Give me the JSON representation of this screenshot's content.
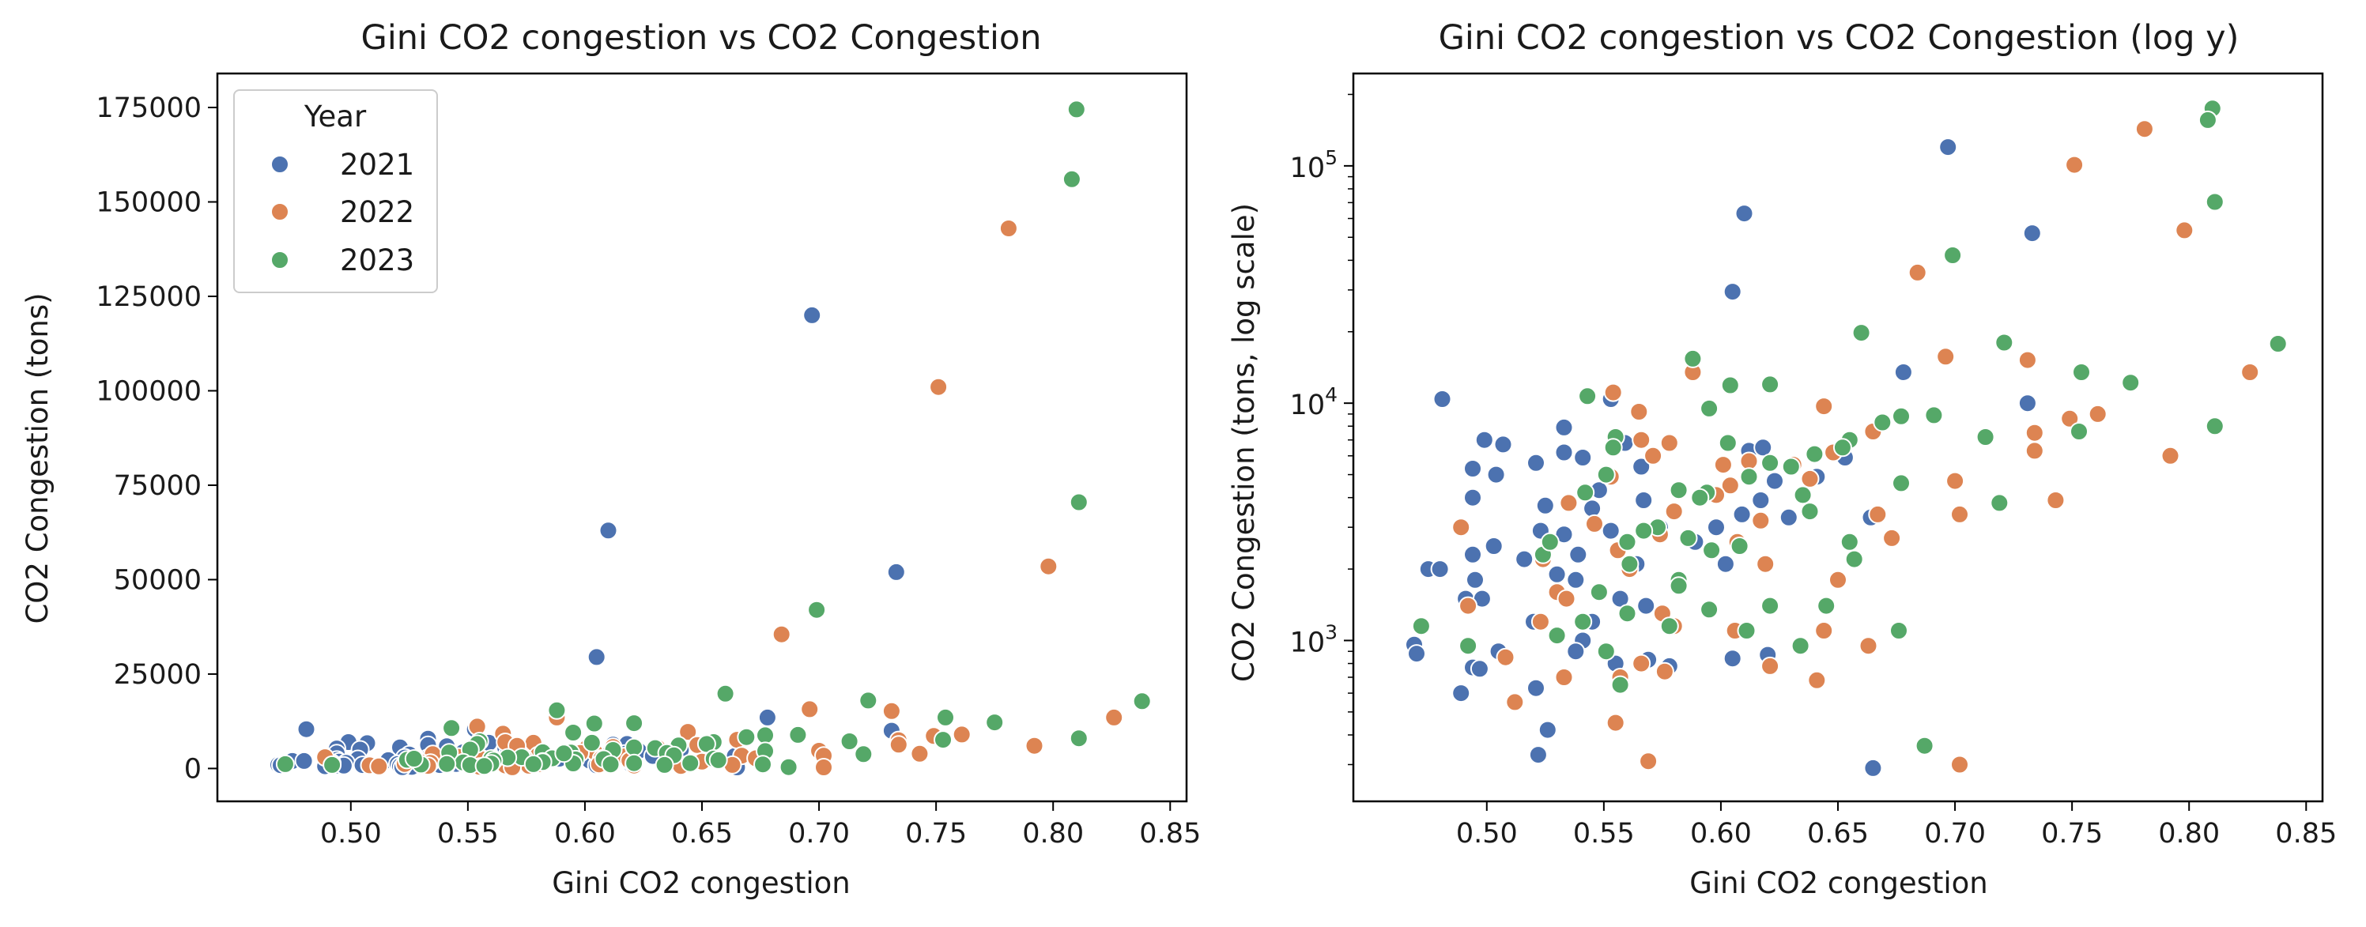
{
  "figure": {
    "legend": {
      "title": "Year",
      "labels": [
        "2021",
        "2022",
        "2023"
      ]
    },
    "colors": {
      "2021": "#4c72b0",
      "2022": "#dd8452",
      "2023": "#55a868"
    }
  },
  "chart_data": [
    {
      "type": "scatter",
      "title": "Gini CO2 congestion vs CO2 Congestion",
      "xlabel": "Gini CO2 congestion",
      "ylabel": "CO2 Congestion (tons)",
      "xlim": [
        0.443,
        0.857
      ],
      "ylim": [
        -8700,
        184000
      ],
      "xscale": "linear",
      "yscale": "linear",
      "x_ticks": [
        "0.50",
        "0.55",
        "0.60",
        "0.65",
        "0.70",
        "0.75",
        "0.80",
        "0.85"
      ],
      "y_ticks": [
        "0",
        "25000",
        "50000",
        "75000",
        "100000",
        "125000",
        "150000",
        "175000"
      ],
      "grid": false,
      "legend_position": "upper-left"
    },
    {
      "type": "scatter",
      "title": "Gini CO2 congestion vs CO2 Congestion (log y)",
      "xlabel": "Gini CO2 congestion",
      "ylabel": "CO2 Congestion (tons, log scale)",
      "xlim": [
        0.443,
        0.857
      ],
      "ylim": [
        210,
        245000
      ],
      "xscale": "linear",
      "yscale": "log",
      "x_ticks": [
        "0.50",
        "0.55",
        "0.60",
        "0.65",
        "0.70",
        "0.75",
        "0.80",
        "0.85"
      ],
      "y_ticks": [
        "10^3",
        "10^4",
        "10^5"
      ],
      "grid": false,
      "legend_position": "none"
    }
  ],
  "points": [
    {
      "x": 0.697,
      "y": 120000,
      "s": "2021"
    },
    {
      "x": 0.61,
      "y": 63000,
      "s": "2021"
    },
    {
      "x": 0.733,
      "y": 52000,
      "s": "2021"
    },
    {
      "x": 0.605,
      "y": 29500,
      "s": "2021"
    },
    {
      "x": 0.678,
      "y": 13500,
      "s": "2021"
    },
    {
      "x": 0.481,
      "y": 10400,
      "s": "2021"
    },
    {
      "x": 0.553,
      "y": 10400,
      "s": "2021"
    },
    {
      "x": 0.731,
      "y": 10000,
      "s": "2021"
    },
    {
      "x": 0.533,
      "y": 7900,
      "s": "2021"
    },
    {
      "x": 0.499,
      "y": 7000,
      "s": "2021"
    },
    {
      "x": 0.507,
      "y": 6700,
      "s": "2021"
    },
    {
      "x": 0.559,
      "y": 6800,
      "s": "2021"
    },
    {
      "x": 0.612,
      "y": 6300,
      "s": "2021"
    },
    {
      "x": 0.618,
      "y": 6500,
      "s": "2021"
    },
    {
      "x": 0.533,
      "y": 6200,
      "s": "2021"
    },
    {
      "x": 0.653,
      "y": 5900,
      "s": "2021"
    },
    {
      "x": 0.541,
      "y": 5900,
      "s": "2021"
    },
    {
      "x": 0.521,
      "y": 5600,
      "s": "2021"
    },
    {
      "x": 0.494,
      "y": 5300,
      "s": "2021"
    },
    {
      "x": 0.504,
      "y": 5000,
      "s": "2021"
    },
    {
      "x": 0.566,
      "y": 5400,
      "s": "2021"
    },
    {
      "x": 0.623,
      "y": 4700,
      "s": "2021"
    },
    {
      "x": 0.494,
      "y": 4000,
      "s": "2021"
    },
    {
      "x": 0.567,
      "y": 3900,
      "s": "2021"
    },
    {
      "x": 0.545,
      "y": 3600,
      "s": "2021"
    },
    {
      "x": 0.525,
      "y": 3700,
      "s": "2021"
    },
    {
      "x": 0.609,
      "y": 3400,
      "s": "2021"
    },
    {
      "x": 0.617,
      "y": 3900,
      "s": "2021"
    },
    {
      "x": 0.598,
      "y": 3000,
      "s": "2021"
    },
    {
      "x": 0.629,
      "y": 3300,
      "s": "2021"
    },
    {
      "x": 0.664,
      "y": 3300,
      "s": "2021"
    },
    {
      "x": 0.523,
      "y": 2900,
      "s": "2021"
    },
    {
      "x": 0.553,
      "y": 2900,
      "s": "2021"
    },
    {
      "x": 0.533,
      "y": 2800,
      "s": "2021"
    },
    {
      "x": 0.503,
      "y": 2500,
      "s": "2021"
    },
    {
      "x": 0.494,
      "y": 2300,
      "s": "2021"
    },
    {
      "x": 0.516,
      "y": 2200,
      "s": "2021"
    },
    {
      "x": 0.539,
      "y": 2300,
      "s": "2021"
    },
    {
      "x": 0.564,
      "y": 2100,
      "s": "2021"
    },
    {
      "x": 0.602,
      "y": 2100,
      "s": "2021"
    },
    {
      "x": 0.475,
      "y": 2000,
      "s": "2021"
    },
    {
      "x": 0.48,
      "y": 2000,
      "s": "2021"
    },
    {
      "x": 0.53,
      "y": 1900,
      "s": "2021"
    },
    {
      "x": 0.495,
      "y": 1800,
      "s": "2021"
    },
    {
      "x": 0.538,
      "y": 1800,
      "s": "2021"
    },
    {
      "x": 0.491,
      "y": 1500,
      "s": "2021"
    },
    {
      "x": 0.498,
      "y": 1500,
      "s": "2021"
    },
    {
      "x": 0.557,
      "y": 1500,
      "s": "2021"
    },
    {
      "x": 0.568,
      "y": 1400,
      "s": "2021"
    },
    {
      "x": 0.52,
      "y": 1200,
      "s": "2021"
    },
    {
      "x": 0.545,
      "y": 1200,
      "s": "2021"
    },
    {
      "x": 0.541,
      "y": 1000,
      "s": "2021"
    },
    {
      "x": 0.505,
      "y": 900,
      "s": "2021"
    },
    {
      "x": 0.469,
      "y": 960,
      "s": "2021"
    },
    {
      "x": 0.47,
      "y": 880,
      "s": "2021"
    },
    {
      "x": 0.538,
      "y": 900,
      "s": "2021"
    },
    {
      "x": 0.62,
      "y": 870,
      "s": "2021"
    },
    {
      "x": 0.605,
      "y": 840,
      "s": "2021"
    },
    {
      "x": 0.569,
      "y": 830,
      "s": "2021"
    },
    {
      "x": 0.578,
      "y": 780,
      "s": "2021"
    },
    {
      "x": 0.494,
      "y": 770,
      "s": "2021"
    },
    {
      "x": 0.497,
      "y": 760,
      "s": "2021"
    },
    {
      "x": 0.555,
      "y": 800,
      "s": "2021"
    },
    {
      "x": 0.521,
      "y": 630,
      "s": "2021"
    },
    {
      "x": 0.489,
      "y": 600,
      "s": "2021"
    },
    {
      "x": 0.526,
      "y": 420,
      "s": "2021"
    },
    {
      "x": 0.522,
      "y": 330,
      "s": "2021"
    },
    {
      "x": 0.665,
      "y": 290,
      "s": "2021"
    },
    {
      "x": 0.574,
      "y": 3000,
      "s": "2021"
    },
    {
      "x": 0.548,
      "y": 4300,
      "s": "2021"
    },
    {
      "x": 0.589,
      "y": 2600,
      "s": "2021"
    },
    {
      "x": 0.641,
      "y": 4900,
      "s": "2021"
    },
    {
      "x": 0.781,
      "y": 143000,
      "s": "2022"
    },
    {
      "x": 0.751,
      "y": 101000,
      "s": "2022"
    },
    {
      "x": 0.798,
      "y": 53500,
      "s": "2022"
    },
    {
      "x": 0.684,
      "y": 35500,
      "s": "2022"
    },
    {
      "x": 0.696,
      "y": 15700,
      "s": "2022"
    },
    {
      "x": 0.731,
      "y": 15200,
      "s": "2022"
    },
    {
      "x": 0.826,
      "y": 13500,
      "s": "2022"
    },
    {
      "x": 0.588,
      "y": 13500,
      "s": "2022"
    },
    {
      "x": 0.554,
      "y": 11100,
      "s": "2022"
    },
    {
      "x": 0.644,
      "y": 9700,
      "s": "2022"
    },
    {
      "x": 0.565,
      "y": 9200,
      "s": "2022"
    },
    {
      "x": 0.761,
      "y": 9000,
      "s": "2022"
    },
    {
      "x": 0.749,
      "y": 8600,
      "s": "2022"
    },
    {
      "x": 0.665,
      "y": 7600,
      "s": "2022"
    },
    {
      "x": 0.578,
      "y": 6800,
      "s": "2022"
    },
    {
      "x": 0.566,
      "y": 7000,
      "s": "2022"
    },
    {
      "x": 0.734,
      "y": 7500,
      "s": "2022"
    },
    {
      "x": 0.734,
      "y": 6300,
      "s": "2022"
    },
    {
      "x": 0.792,
      "y": 6000,
      "s": "2022"
    },
    {
      "x": 0.601,
      "y": 5500,
      "s": "2022"
    },
    {
      "x": 0.612,
      "y": 5700,
      "s": "2022"
    },
    {
      "x": 0.571,
      "y": 6000,
      "s": "2022"
    },
    {
      "x": 0.631,
      "y": 5500,
      "s": "2022"
    },
    {
      "x": 0.648,
      "y": 6200,
      "s": "2022"
    },
    {
      "x": 0.7,
      "y": 4700,
      "s": "2022"
    },
    {
      "x": 0.553,
      "y": 4900,
      "s": "2022"
    },
    {
      "x": 0.604,
      "y": 4500,
      "s": "2022"
    },
    {
      "x": 0.638,
      "y": 4800,
      "s": "2022"
    },
    {
      "x": 0.743,
      "y": 3900,
      "s": "2022"
    },
    {
      "x": 0.598,
      "y": 4100,
      "s": "2022"
    },
    {
      "x": 0.535,
      "y": 3800,
      "s": "2022"
    },
    {
      "x": 0.58,
      "y": 3500,
      "s": "2022"
    },
    {
      "x": 0.702,
      "y": 3400,
      "s": "2022"
    },
    {
      "x": 0.667,
      "y": 3400,
      "s": "2022"
    },
    {
      "x": 0.617,
      "y": 3200,
      "s": "2022"
    },
    {
      "x": 0.546,
      "y": 3100,
      "s": "2022"
    },
    {
      "x": 0.574,
      "y": 2800,
      "s": "2022"
    },
    {
      "x": 0.607,
      "y": 2600,
      "s": "2022"
    },
    {
      "x": 0.556,
      "y": 2400,
      "s": "2022"
    },
    {
      "x": 0.524,
      "y": 2200,
      "s": "2022"
    },
    {
      "x": 0.619,
      "y": 2100,
      "s": "2022"
    },
    {
      "x": 0.561,
      "y": 2000,
      "s": "2022"
    },
    {
      "x": 0.53,
      "y": 1600,
      "s": "2022"
    },
    {
      "x": 0.492,
      "y": 1400,
      "s": "2022"
    },
    {
      "x": 0.534,
      "y": 1500,
      "s": "2022"
    },
    {
      "x": 0.575,
      "y": 1300,
      "s": "2022"
    },
    {
      "x": 0.523,
      "y": 1200,
      "s": "2022"
    },
    {
      "x": 0.606,
      "y": 1100,
      "s": "2022"
    },
    {
      "x": 0.644,
      "y": 1100,
      "s": "2022"
    },
    {
      "x": 0.58,
      "y": 1150,
      "s": "2022"
    },
    {
      "x": 0.673,
      "y": 2700,
      "s": "2022"
    },
    {
      "x": 0.65,
      "y": 1800,
      "s": "2022"
    },
    {
      "x": 0.508,
      "y": 850,
      "s": "2022"
    },
    {
      "x": 0.566,
      "y": 800,
      "s": "2022"
    },
    {
      "x": 0.621,
      "y": 780,
      "s": "2022"
    },
    {
      "x": 0.557,
      "y": 700,
      "s": "2022"
    },
    {
      "x": 0.576,
      "y": 740,
      "s": "2022"
    },
    {
      "x": 0.533,
      "y": 700,
      "s": "2022"
    },
    {
      "x": 0.641,
      "y": 680,
      "s": "2022"
    },
    {
      "x": 0.512,
      "y": 550,
      "s": "2022"
    },
    {
      "x": 0.555,
      "y": 450,
      "s": "2022"
    },
    {
      "x": 0.569,
      "y": 310,
      "s": "2022"
    },
    {
      "x": 0.702,
      "y": 300,
      "s": "2022"
    },
    {
      "x": 0.663,
      "y": 950,
      "s": "2022"
    },
    {
      "x": 0.489,
      "y": 3000,
      "s": "2022"
    },
    {
      "x": 0.81,
      "y": 174500,
      "s": "2023"
    },
    {
      "x": 0.808,
      "y": 156000,
      "s": "2023"
    },
    {
      "x": 0.811,
      "y": 70500,
      "s": "2023"
    },
    {
      "x": 0.699,
      "y": 42000,
      "s": "2023"
    },
    {
      "x": 0.66,
      "y": 19800,
      "s": "2023"
    },
    {
      "x": 0.721,
      "y": 18000,
      "s": "2023"
    },
    {
      "x": 0.838,
      "y": 17800,
      "s": "2023"
    },
    {
      "x": 0.588,
      "y": 15400,
      "s": "2023"
    },
    {
      "x": 0.754,
      "y": 13500,
      "s": "2023"
    },
    {
      "x": 0.775,
      "y": 12200,
      "s": "2023"
    },
    {
      "x": 0.604,
      "y": 11900,
      "s": "2023"
    },
    {
      "x": 0.621,
      "y": 12000,
      "s": "2023"
    },
    {
      "x": 0.543,
      "y": 10700,
      "s": "2023"
    },
    {
      "x": 0.595,
      "y": 9500,
      "s": "2023"
    },
    {
      "x": 0.691,
      "y": 8900,
      "s": "2023"
    },
    {
      "x": 0.677,
      "y": 8800,
      "s": "2023"
    },
    {
      "x": 0.669,
      "y": 8300,
      "s": "2023"
    },
    {
      "x": 0.811,
      "y": 8000,
      "s": "2023"
    },
    {
      "x": 0.753,
      "y": 7600,
      "s": "2023"
    },
    {
      "x": 0.713,
      "y": 7200,
      "s": "2023"
    },
    {
      "x": 0.555,
      "y": 7200,
      "s": "2023"
    },
    {
      "x": 0.655,
      "y": 7000,
      "s": "2023"
    },
    {
      "x": 0.603,
      "y": 6800,
      "s": "2023"
    },
    {
      "x": 0.652,
      "y": 6500,
      "s": "2023"
    },
    {
      "x": 0.64,
      "y": 6100,
      "s": "2023"
    },
    {
      "x": 0.621,
      "y": 5600,
      "s": "2023"
    },
    {
      "x": 0.63,
      "y": 5400,
      "s": "2023"
    },
    {
      "x": 0.554,
      "y": 6500,
      "s": "2023"
    },
    {
      "x": 0.612,
      "y": 4900,
      "s": "2023"
    },
    {
      "x": 0.677,
      "y": 4600,
      "s": "2023"
    },
    {
      "x": 0.551,
      "y": 5000,
      "s": "2023"
    },
    {
      "x": 0.582,
      "y": 4300,
      "s": "2023"
    },
    {
      "x": 0.594,
      "y": 4200,
      "s": "2023"
    },
    {
      "x": 0.635,
      "y": 4100,
      "s": "2023"
    },
    {
      "x": 0.542,
      "y": 4200,
      "s": "2023"
    },
    {
      "x": 0.719,
      "y": 3800,
      "s": "2023"
    },
    {
      "x": 0.638,
      "y": 3500,
      "s": "2023"
    },
    {
      "x": 0.573,
      "y": 3000,
      "s": "2023"
    },
    {
      "x": 0.567,
      "y": 2900,
      "s": "2023"
    },
    {
      "x": 0.586,
      "y": 2700,
      "s": "2023"
    },
    {
      "x": 0.56,
      "y": 2600,
      "s": "2023"
    },
    {
      "x": 0.655,
      "y": 2600,
      "s": "2023"
    },
    {
      "x": 0.608,
      "y": 2500,
      "s": "2023"
    },
    {
      "x": 0.596,
      "y": 2400,
      "s": "2023"
    },
    {
      "x": 0.657,
      "y": 2200,
      "s": "2023"
    },
    {
      "x": 0.524,
      "y": 2300,
      "s": "2023"
    },
    {
      "x": 0.561,
      "y": 2100,
      "s": "2023"
    },
    {
      "x": 0.582,
      "y": 1800,
      "s": "2023"
    },
    {
      "x": 0.582,
      "y": 1700,
      "s": "2023"
    },
    {
      "x": 0.548,
      "y": 1600,
      "s": "2023"
    },
    {
      "x": 0.621,
      "y": 1400,
      "s": "2023"
    },
    {
      "x": 0.645,
      "y": 1400,
      "s": "2023"
    },
    {
      "x": 0.595,
      "y": 1350,
      "s": "2023"
    },
    {
      "x": 0.56,
      "y": 1300,
      "s": "2023"
    },
    {
      "x": 0.541,
      "y": 1200,
      "s": "2023"
    },
    {
      "x": 0.578,
      "y": 1150,
      "s": "2023"
    },
    {
      "x": 0.472,
      "y": 1150,
      "s": "2023"
    },
    {
      "x": 0.611,
      "y": 1100,
      "s": "2023"
    },
    {
      "x": 0.676,
      "y": 1100,
      "s": "2023"
    },
    {
      "x": 0.53,
      "y": 1050,
      "s": "2023"
    },
    {
      "x": 0.634,
      "y": 950,
      "s": "2023"
    },
    {
      "x": 0.492,
      "y": 950,
      "s": "2023"
    },
    {
      "x": 0.551,
      "y": 900,
      "s": "2023"
    },
    {
      "x": 0.557,
      "y": 650,
      "s": "2023"
    },
    {
      "x": 0.687,
      "y": 360,
      "s": "2023"
    },
    {
      "x": 0.591,
      "y": 4000,
      "s": "2023"
    },
    {
      "x": 0.527,
      "y": 2600,
      "s": "2023"
    }
  ]
}
